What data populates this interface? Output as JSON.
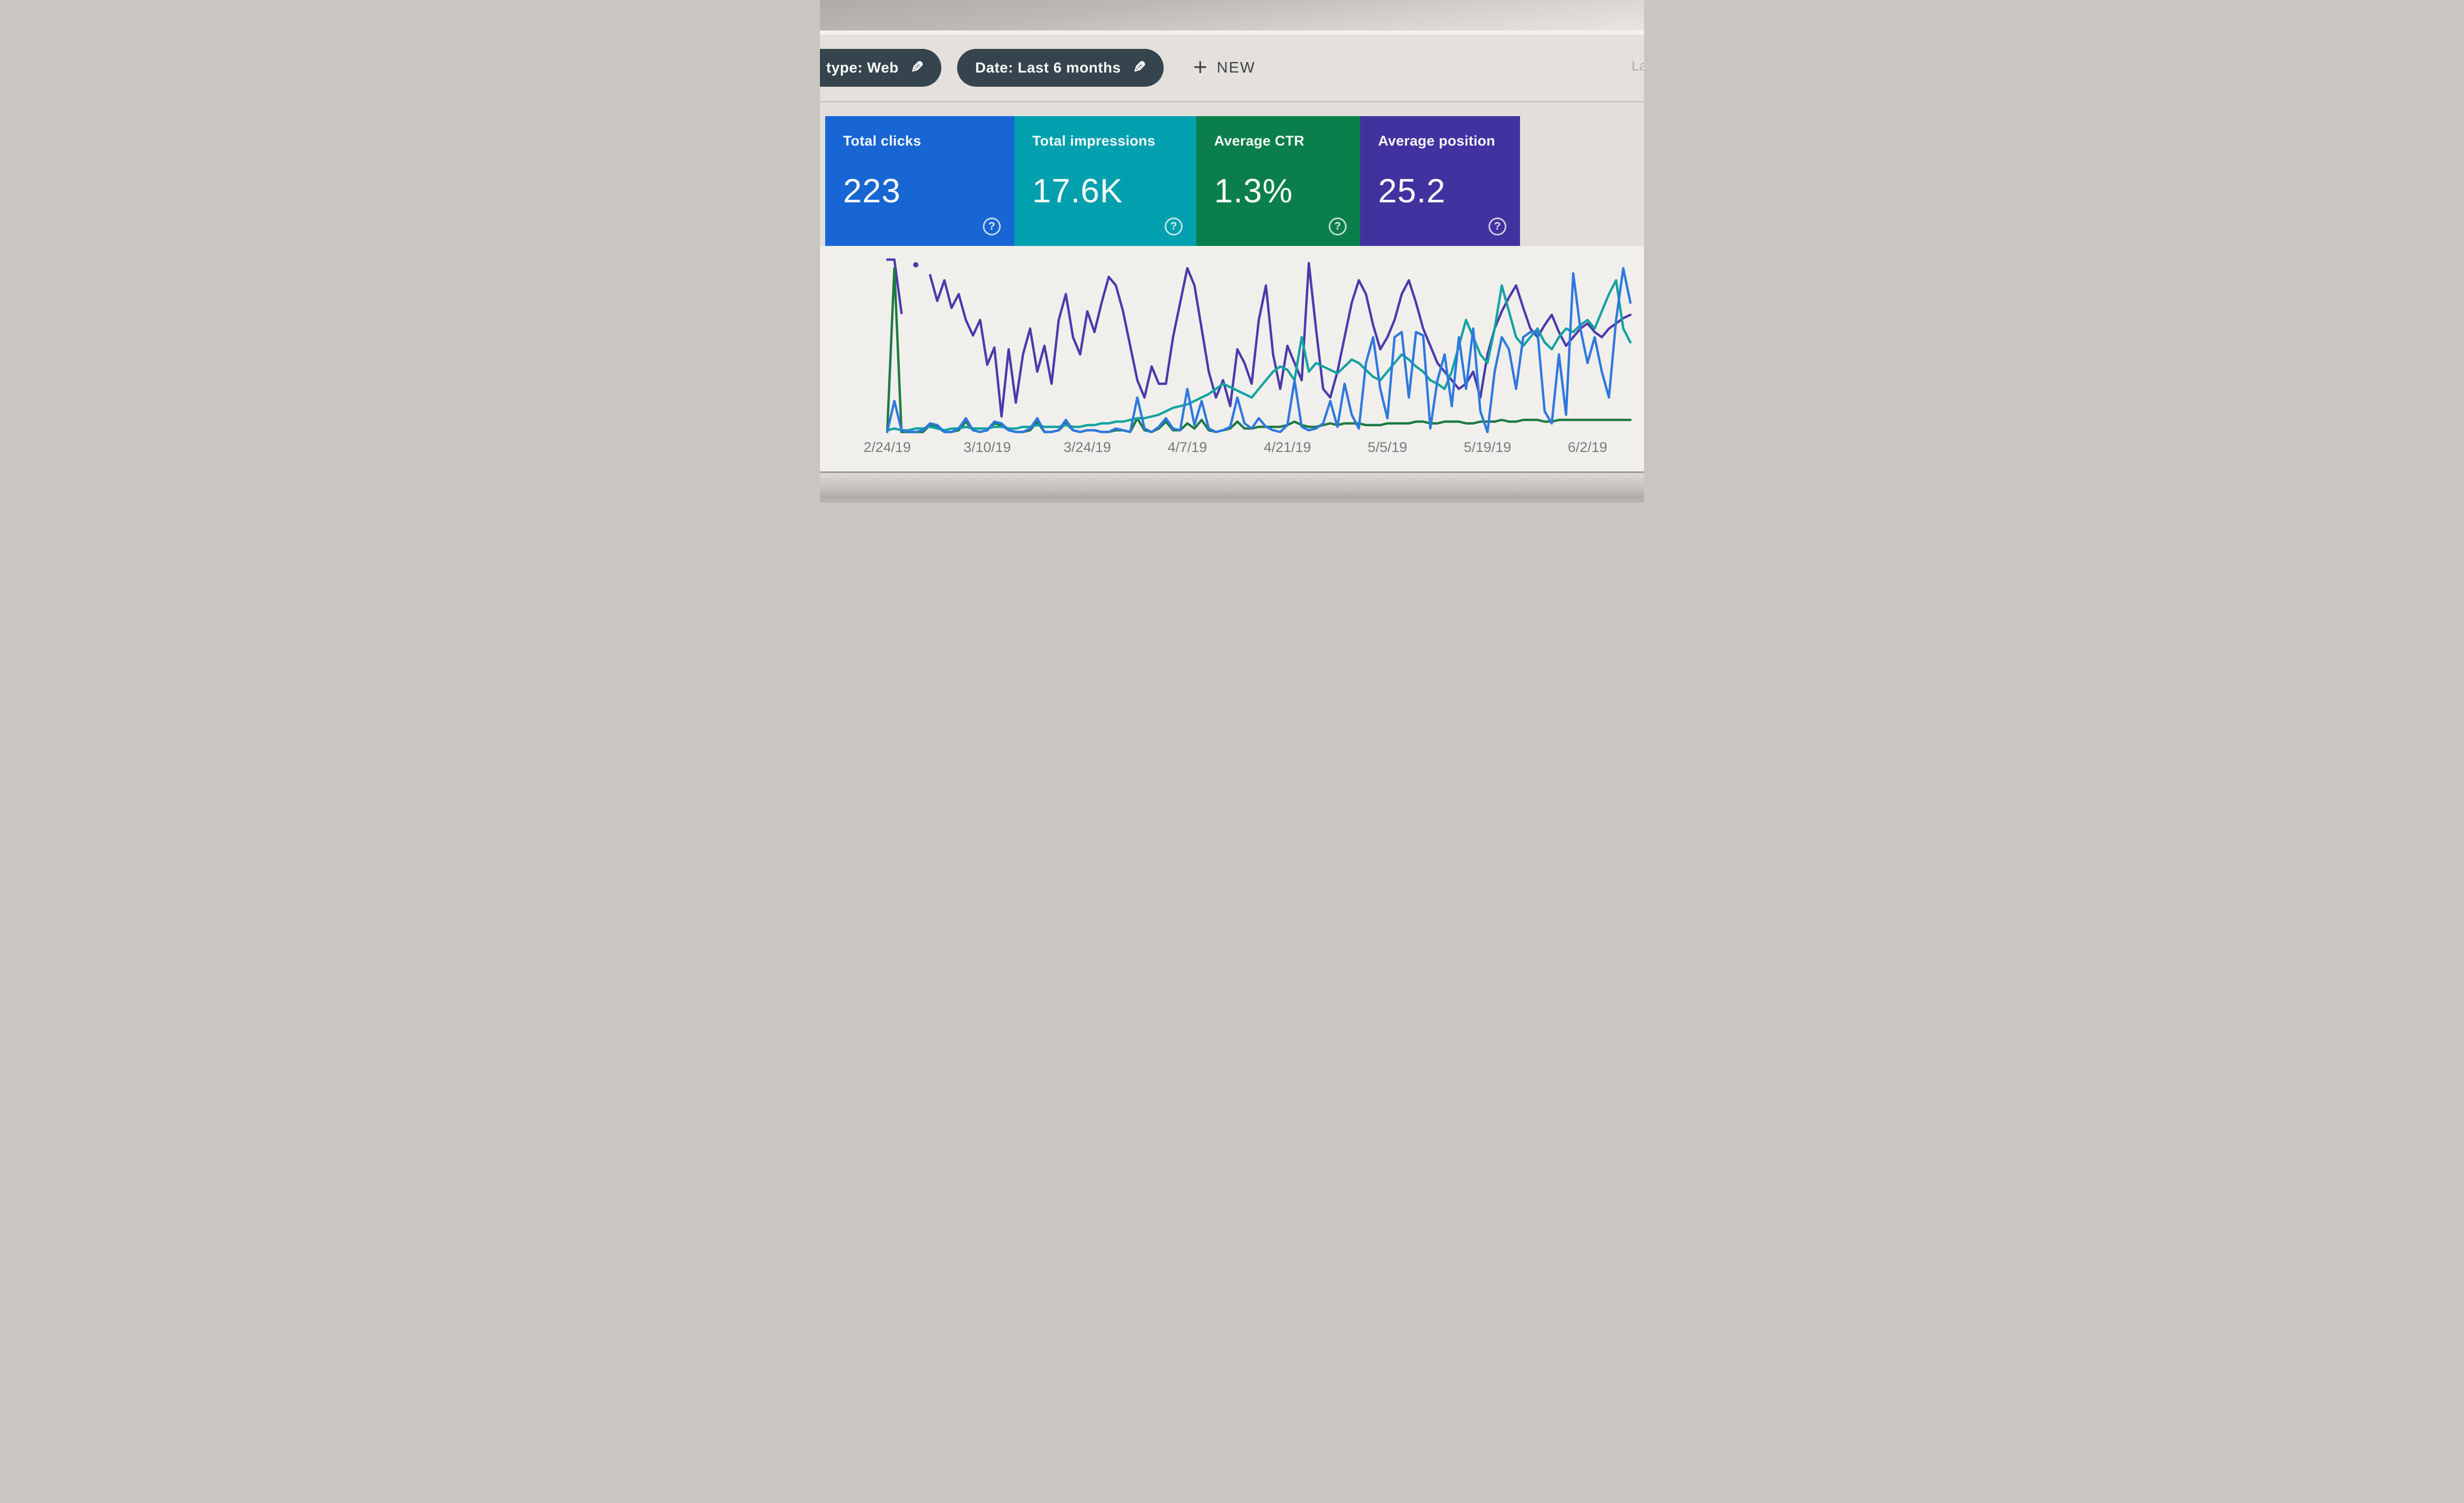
{
  "toolbar": {
    "chips": [
      {
        "label": "type: Web"
      },
      {
        "label": "Date: Last 6 months"
      }
    ],
    "new_button_label": "NEW",
    "partial_text_right": "La"
  },
  "icons": {
    "pencil": "✎",
    "plus": "+",
    "help": "?"
  },
  "cards": [
    {
      "label": "Total clicks",
      "value": "223",
      "color": "#1766d3"
    },
    {
      "label": "Total impressions",
      "value": "17.6K",
      "color": "#00a0ae"
    },
    {
      "label": "Average CTR",
      "value": "1.3%",
      "color": "#0b7f4b"
    },
    {
      "label": "Average position",
      "value": "25.2",
      "color": "#41339f"
    }
  ],
  "chart_data": {
    "type": "line",
    "x": {
      "start_label": "2/24/19",
      "total_days": 105,
      "ticks": [
        {
          "label": "2/24/19",
          "day": 0
        },
        {
          "label": "3/10/19",
          "day": 14
        },
        {
          "label": "3/24/19",
          "day": 28
        },
        {
          "label": "4/7/19",
          "day": 42
        },
        {
          "label": "4/21/19",
          "day": 56
        },
        {
          "label": "5/5/19",
          "day": 70
        },
        {
          "label": "5/19/19",
          "day": 84
        },
        {
          "label": "6/2/19",
          "day": 98
        }
      ]
    },
    "y_axis": {
      "labels_visible": false,
      "unit": "percent_of_plot_height",
      "range": [
        0,
        100
      ]
    },
    "legend_position": "none",
    "grid": false,
    "series": [
      {
        "name": "Clicks",
        "color": "#2e79de",
        "values": [
          0,
          18,
          1,
          0,
          0,
          1,
          5,
          4,
          0,
          0,
          2,
          8,
          1,
          0,
          1,
          6,
          5,
          1,
          0,
          0,
          2,
          8,
          0,
          0,
          1,
          7,
          1,
          0,
          1,
          1,
          0,
          0,
          2,
          1,
          0,
          20,
          2,
          0,
          3,
          8,
          2,
          1,
          25,
          4,
          18,
          2,
          0,
          1,
          3,
          20,
          5,
          2,
          8,
          3,
          1,
          0,
          4,
          30,
          3,
          1,
          2,
          5,
          18,
          3,
          28,
          10,
          2,
          40,
          55,
          25,
          8,
          55,
          58,
          20,
          58,
          56,
          2,
          30,
          45,
          15,
          55,
          25,
          60,
          12,
          0,
          35,
          55,
          48,
          25,
          55,
          58,
          58,
          12,
          5,
          45,
          10,
          92,
          60,
          40,
          55,
          35,
          20,
          65,
          95,
          75
        ]
      },
      {
        "name": "Impressions",
        "color": "#13a3a0",
        "values": [
          1,
          2,
          1,
          1,
          2,
          2,
          3,
          2,
          1,
          2,
          2,
          3,
          2,
          2,
          2,
          3,
          3,
          2,
          2,
          3,
          3,
          4,
          3,
          3,
          3,
          4,
          3,
          3,
          4,
          4,
          5,
          5,
          6,
          6,
          7,
          8,
          8,
          9,
          10,
          12,
          14,
          15,
          16,
          18,
          20,
          22,
          25,
          28,
          26,
          24,
          22,
          20,
          25,
          30,
          35,
          38,
          36,
          30,
          55,
          35,
          40,
          38,
          36,
          34,
          38,
          42,
          40,
          36,
          32,
          30,
          35,
          40,
          45,
          42,
          38,
          35,
          30,
          28,
          25,
          35,
          50,
          65,
          55,
          45,
          40,
          60,
          85,
          70,
          55,
          50,
          55,
          60,
          52,
          48,
          55,
          60,
          58,
          62,
          65,
          60,
          70,
          80,
          88,
          60,
          52
        ]
      },
      {
        "name": "CTR",
        "color": "#1d7a44",
        "values": [
          0,
          95,
          0,
          0,
          0,
          0,
          4,
          3,
          0,
          0,
          1,
          6,
          1,
          0,
          1,
          5,
          4,
          1,
          0,
          0,
          1,
          6,
          0,
          0,
          1,
          5,
          1,
          0,
          1,
          1,
          0,
          0,
          1,
          1,
          0,
          8,
          1,
          0,
          2,
          6,
          1,
          1,
          5,
          2,
          7,
          1,
          0,
          1,
          2,
          6,
          2,
          2,
          3,
          3,
          3,
          3,
          4,
          6,
          4,
          3,
          3,
          4,
          5,
          4,
          5,
          5,
          5,
          4,
          4,
          4,
          5,
          5,
          5,
          5,
          6,
          6,
          5,
          5,
          6,
          6,
          6,
          5,
          5,
          6,
          6,
          6,
          7,
          6,
          6,
          7,
          7,
          7,
          6,
          6,
          7,
          7,
          7,
          7,
          7,
          7,
          7,
          7,
          7,
          7,
          7
        ]
      },
      {
        "name": "Position",
        "color": "#4a3aad",
        "values": [
          100,
          100,
          69,
          null,
          97,
          null,
          91,
          76,
          88,
          72,
          80,
          65,
          56,
          65,
          39,
          49,
          9,
          48,
          17,
          45,
          60,
          35,
          50,
          28,
          65,
          80,
          55,
          45,
          70,
          58,
          75,
          90,
          85,
          70,
          50,
          30,
          20,
          38,
          28,
          28,
          55,
          75,
          95,
          85,
          60,
          35,
          20,
          30,
          15,
          48,
          40,
          28,
          65,
          85,
          45,
          25,
          50,
          40,
          30,
          98,
          60,
          25,
          20,
          35,
          55,
          75,
          88,
          80,
          62,
          48,
          55,
          65,
          80,
          88,
          75,
          60,
          50,
          40,
          35,
          30,
          25,
          28,
          35,
          20,
          45,
          60,
          70,
          78,
          85,
          72,
          60,
          55,
          62,
          68,
          58,
          50,
          55,
          60,
          63,
          58,
          55,
          60,
          63,
          66,
          68
        ]
      }
    ]
  }
}
